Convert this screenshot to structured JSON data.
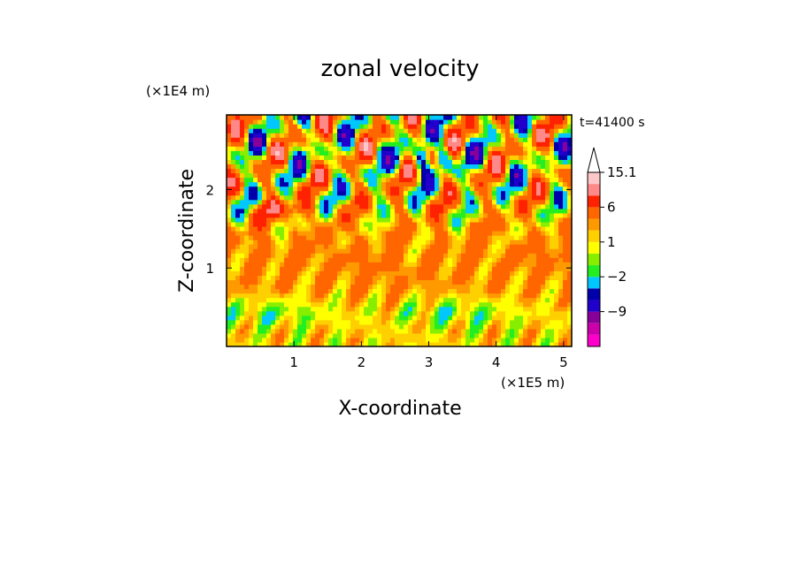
{
  "chart_data": {
    "type": "heatmap",
    "title": "zonal velocity",
    "xlabel": "X-coordinate",
    "ylabel": "Z-coordinate",
    "x_unit": "(×1E5 m)",
    "y_unit": "(×1E4 m)",
    "time_label": "t=41400 s",
    "xlim": [
      0,
      5.12
    ],
    "ylim": [
      0,
      2.95
    ],
    "x_ticks": [
      1,
      2,
      3,
      4,
      5
    ],
    "y_ticks": [
      1,
      2
    ],
    "colorbar": {
      "levels": [
        -15,
        -12,
        -9,
        -6,
        -4,
        -2,
        -1,
        0,
        1,
        2,
        3,
        6,
        9,
        12,
        15.1
      ],
      "labels": [
        "15.1",
        "6",
        "1",
        "−2",
        "−9"
      ],
      "label_values": [
        15.1,
        6,
        1,
        -2,
        -9
      ],
      "colors": [
        "#ff00cc",
        "#cc00aa",
        "#880099",
        "#2200cc",
        "#0000aa",
        "#00c8ff",
        "#22ee22",
        "#88ee00",
        "#ffff00",
        "#ffd000",
        "#ff9900",
        "#ff6600",
        "#ff2200",
        "#ff8888",
        "#ffc8c8"
      ],
      "extend": "max"
    }
  }
}
